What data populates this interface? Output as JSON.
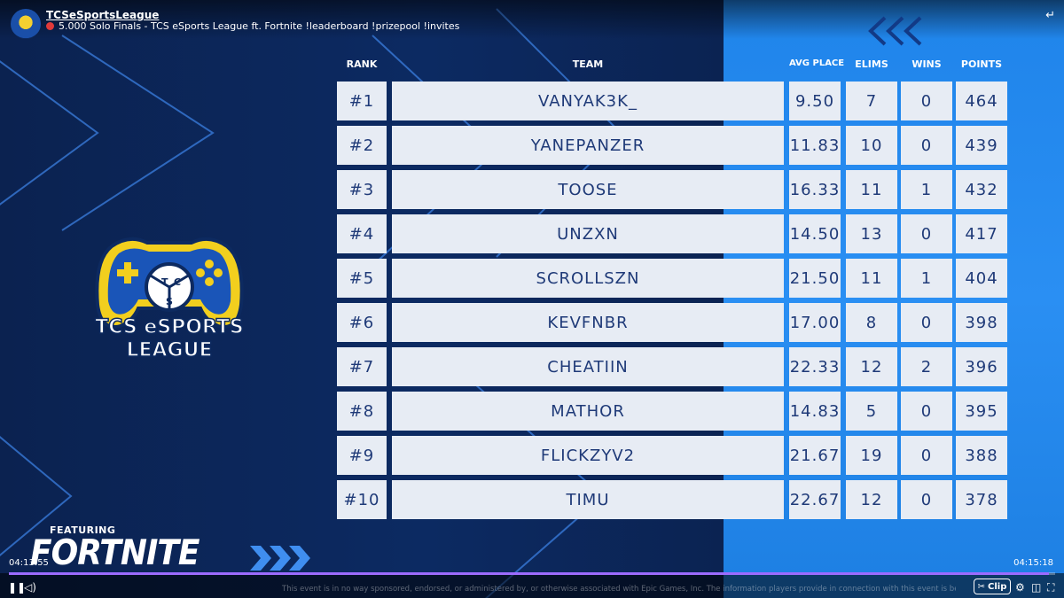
{
  "channel": {
    "name": "TCSeSportsLeague",
    "title": "5.000 Solo Finals - TCS eSports League ft. Fortnite !leaderboard !prizepool !invites"
  },
  "headers": {
    "rank": "RANK",
    "team": "TEAM",
    "avg_place": "AVG PLACE",
    "elims": "ELIMS",
    "wins": "WINS",
    "points": "POINTS"
  },
  "rows": [
    {
      "rank": "#1",
      "team": "VANYAK3K_",
      "avg": "9.50",
      "elims": "7",
      "wins": "0",
      "points": "464"
    },
    {
      "rank": "#2",
      "team": "YANEPANZER",
      "avg": "11.83",
      "elims": "10",
      "wins": "0",
      "points": "439"
    },
    {
      "rank": "#3",
      "team": "TOOSE",
      "avg": "16.33",
      "elims": "11",
      "wins": "1",
      "points": "432"
    },
    {
      "rank": "#4",
      "team": "UNZXN",
      "avg": "14.50",
      "elims": "13",
      "wins": "0",
      "points": "417"
    },
    {
      "rank": "#5",
      "team": "SCROLLSZN",
      "avg": "21.50",
      "elims": "11",
      "wins": "1",
      "points": "404"
    },
    {
      "rank": "#6",
      "team": "KEVFNBR",
      "avg": "17.00",
      "elims": "8",
      "wins": "0",
      "points": "398"
    },
    {
      "rank": "#7",
      "team": "CHEATIIN",
      "avg": "22.33",
      "elims": "12",
      "wins": "2",
      "points": "396"
    },
    {
      "rank": "#8",
      "team": "MATHOR",
      "avg": "14.83",
      "elims": "5",
      "wins": "0",
      "points": "395"
    },
    {
      "rank": "#9",
      "team": "FLICKZYV2",
      "avg": "21.67",
      "elims": "19",
      "wins": "0",
      "points": "388"
    },
    {
      "rank": "#10",
      "team": "TIMU",
      "avg": "22.67",
      "elims": "12",
      "wins": "0",
      "points": "378"
    }
  ],
  "logo": {
    "line1": "TCS eSPORTS",
    "line2": "LEAGUE",
    "letters": [
      "T",
      "C",
      "S"
    ]
  },
  "branding": {
    "featuring": "FEATURING",
    "game": "FORTNITE"
  },
  "player": {
    "time_current": "04:13:55",
    "time_total": "04:15:18",
    "progress": 0.994,
    "clip_label": "Clip",
    "disclaimer": "This event is in no way sponsored, endorsed, or administered by, or otherwise associated with Epic Games, Inc. The information players provide in connection with this event is being provided to event organizer and not to Epic"
  },
  "colors": {
    "accent": "#1f84ea",
    "cell_bg": "#e7ecf4",
    "cell_text": "#1f3a78",
    "progress": "#9c6bff"
  },
  "icons": [
    "exit-fullscreen-icon",
    "pause-icon",
    "volume-icon",
    "settings-icon",
    "theater-icon",
    "fullscreen-icon",
    "triple-chevron-left-icon",
    "triple-chevron-right-icon"
  ]
}
